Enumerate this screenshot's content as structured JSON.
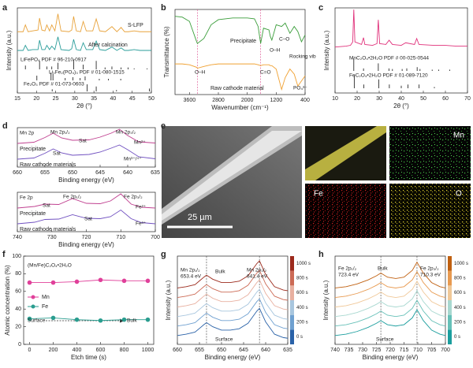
{
  "panel_labels": [
    "a",
    "b",
    "c",
    "d",
    "e",
    "f",
    "g",
    "h"
  ],
  "image_panel": {
    "scale_bar": "25 µm",
    "maps": [
      "Mn",
      "Fe",
      "O"
    ]
  },
  "chart_data": [
    {
      "type": "line",
      "xlabel": "2θ (°)",
      "ylabel": "Intensity (a.u.)",
      "xlim": [
        15,
        50
      ],
      "ylim": [
        0,
        10
      ],
      "xticks": [
        15,
        20,
        25,
        30,
        35,
        40,
        45,
        50
      ],
      "x": [
        15,
        16.5,
        17.1,
        17.8,
        19,
        20.4,
        20.8,
        21.4,
        22.2,
        22.7,
        23.4,
        24.0,
        24.8,
        25.6,
        26.4,
        28.5,
        29.2,
        29.7,
        30.4,
        31.5,
        32.2,
        33,
        34.7,
        35.6,
        36.5,
        38,
        39.7,
        41,
        42.1,
        43,
        44,
        45.5,
        47,
        49,
        50
      ],
      "series": [
        {
          "name": "S-LFP",
          "color": "#e8a23a",
          "values": [
            7.2,
            7.2,
            8.0,
            7.2,
            7.3,
            7.4,
            8.8,
            7.4,
            7.3,
            8.0,
            7.3,
            8.0,
            7.3,
            9.3,
            7.3,
            7.2,
            7.4,
            9.0,
            7.3,
            7.2,
            8.4,
            7.3,
            7.3,
            8.7,
            7.3,
            7.2,
            7.8,
            7.2,
            7.7,
            7.2,
            7.2,
            7.3,
            7.2,
            7.2,
            7.2
          ]
        },
        {
          "name": "After calcination",
          "color": "#2a9d9a",
          "values": [
            5.0,
            5.0,
            5.6,
            5.0,
            5.1,
            5.1,
            6.2,
            5.1,
            5.1,
            5.6,
            5.1,
            5.5,
            5.1,
            6.6,
            5.1,
            5.0,
            5.2,
            6.3,
            5.1,
            5.0,
            5.9,
            5.1,
            5.1,
            6.1,
            5.1,
            5.0,
            5.4,
            5.0,
            5.3,
            5.0,
            5.0,
            5.1,
            5.0,
            5.0,
            5.0
          ]
        }
      ],
      "sticks": [
        {
          "name": "LiFePO₄ PDF # 96-210-0917",
          "x": [
            17.1,
            20.8,
            22.7,
            24.0,
            25.6,
            29.7,
            32.2,
            35.6,
            37.9,
            39.7,
            42.1,
            43.9,
            45.5,
            48.9
          ],
          "heights": [
            0.4,
            0.9,
            0.3,
            0.3,
            0.7,
            1,
            0.5,
            0.9,
            0.2,
            0.3,
            0.2,
            0.2,
            0.1,
            0.1
          ]
        },
        {
          "name": "Li₃Fe₂(PO₄)₃ PDF # 01-080-1515",
          "x": [
            20.1,
            23.8,
            24.3,
            27.5,
            29.5,
            31.4,
            32.7,
            36.4,
            38.8,
            42
          ],
          "heights": [
            0.6,
            1,
            0.8,
            0.3,
            0.4,
            0.3,
            0.5,
            0.2,
            0.2,
            0.2
          ]
        },
        {
          "name": "Fe₂O₃ PDF # 01-073-0603",
          "x": [
            24.1,
            33.2,
            35.6,
            40.9,
            49.5
          ],
          "heights": [
            0.3,
            1,
            0.7,
            0.2,
            0.4
          ]
        }
      ]
    },
    {
      "type": "line",
      "xlabel": "Wavenumber (cm⁻¹)",
      "ylabel": "Transmittance (%)",
      "xlim": [
        4000,
        400
      ],
      "ylim": [
        0,
        10
      ],
      "xticks": [
        3600,
        2800,
        2000,
        1200,
        400
      ],
      "x": [
        4000,
        3800,
        3600,
        3400,
        3380,
        3200,
        3000,
        2800,
        2400,
        2000,
        1800,
        1700,
        1630,
        1550,
        1400,
        1360,
        1320,
        1200,
        1050,
        950,
        820,
        700,
        600,
        500,
        400
      ],
      "vlines": [
        3380,
        1630
      ],
      "series": [
        {
          "name": "Precipitate",
          "color": "#3a9d3a",
          "values": [
            9.2,
            9.1,
            8.6,
            6.2,
            6.0,
            6.6,
            8.2,
            8.8,
            9.0,
            9.0,
            8.9,
            8.0,
            6.0,
            7.8,
            7.6,
            6.8,
            6.4,
            8.2,
            8.0,
            8.4,
            7.2,
            8.0,
            7.4,
            6.2,
            7.0
          ]
        },
        {
          "name": "Raw cathode material",
          "color": "#f0a030",
          "values": [
            3.6,
            3.6,
            3.5,
            3.2,
            3.1,
            3.3,
            3.5,
            3.6,
            3.6,
            3.6,
            3.6,
            3.5,
            3.4,
            3.5,
            3.5,
            3.4,
            3.4,
            3.0,
            0.6,
            2.0,
            3.0,
            2.4,
            1.0,
            1.6,
            2.2
          ]
        }
      ],
      "annotations": [
        "O–H",
        "C=O",
        "C–O",
        "O–H",
        "Rocking vib",
        "PO₄³⁻"
      ]
    },
    {
      "type": "line",
      "xlabel": "2θ (°)",
      "ylabel": "Intensity (a.u.)",
      "xlim": [
        10,
        70
      ],
      "ylim": [
        0,
        10
      ],
      "xticks": [
        10,
        20,
        30,
        40,
        50,
        60,
        70
      ],
      "x": [
        10,
        15,
        17,
        18,
        18.5,
        19,
        22,
        22.9,
        23.5,
        27,
        29,
        29.6,
        30.2,
        33,
        34.5,
        36,
        40,
        42,
        46,
        47,
        48,
        55,
        60,
        65,
        70
      ],
      "series": [
        {
          "color": "#e0307a",
          "values": [
            5.4,
            5.5,
            5.6,
            6.0,
            9.8,
            6.0,
            5.7,
            6.5,
            5.7,
            5.6,
            5.8,
            8.6,
            5.8,
            5.7,
            6.2,
            5.7,
            5.6,
            5.9,
            5.7,
            6.4,
            5.7,
            5.6,
            5.6,
            5.5,
            5.5
          ]
        }
      ],
      "sticks": [
        {
          "name": "MnC₂O₄•2H₂O  PDF # 00-025-0544",
          "x": [
            18.5,
            22.9,
            29.6,
            34.4,
            36,
            40.4,
            42.5,
            47.2,
            48.5,
            54,
            57,
            62
          ],
          "heights": [
            1,
            0.2,
            0.6,
            0.2,
            0.15,
            0.15,
            0.2,
            0.3,
            0.15,
            0.1,
            0.1,
            0.1
          ]
        },
        {
          "name": "FeC₂O₄•2H₂O  PDF # 01-089-7120",
          "x": [
            18.7,
            23,
            29.8,
            34.6,
            40,
            43,
            48,
            55
          ],
          "heights": [
            1,
            0.3,
            0.7,
            0.3,
            0.2,
            0.3,
            0.3,
            0.1
          ]
        }
      ]
    },
    {
      "type": "line",
      "xlabel": "Binding energy (eV)",
      "xlim": [
        660,
        635
      ],
      "ylim": [
        0,
        10
      ],
      "xticks": [
        660,
        655,
        650,
        645,
        640,
        635
      ],
      "x": [
        660,
        657,
        655,
        653.5,
        652,
        650,
        647,
        645,
        643,
        641.5,
        640,
        638,
        635
      ],
      "series": [
        {
          "name": "Precipitate",
          "color": "#c04090",
          "values": [
            6.0,
            6.3,
            7.5,
            8.6,
            7.4,
            6.8,
            6.9,
            7.6,
            8.6,
            9.6,
            8.0,
            6.4,
            6.1
          ]
        },
        {
          "name": "Raw cathode materials",
          "color": "#7050c0",
          "values": [
            2.0,
            2.3,
            3.5,
            4.6,
            3.6,
            3.0,
            3.2,
            3.8,
            4.8,
            5.6,
            4.4,
            2.6,
            2.1
          ]
        }
      ],
      "annotations": [
        "Mn 2p",
        "Mn 2p₁/₂",
        "Sat",
        "Mn 2p₃/₂",
        "Mn²⁺",
        "Sat",
        "Mn³⁺/⁴⁺"
      ]
    },
    {
      "type": "line",
      "xlabel": "Binding energy (eV)",
      "xlim": [
        740,
        700
      ],
      "ylim": [
        0,
        10
      ],
      "xticks": [
        740,
        730,
        720,
        710,
        700
      ],
      "x": [
        740,
        735,
        732,
        728,
        724,
        720,
        716,
        713,
        710,
        707,
        704,
        700
      ],
      "series": [
        {
          "name": "Precipitate",
          "color": "#c04090",
          "values": [
            6.0,
            6.4,
            7.0,
            6.9,
            8.4,
            7.2,
            7.1,
            7.8,
            9.6,
            7.0,
            6.2,
            6.0
          ]
        },
        {
          "name": "Raw cathode materials",
          "color": "#7050c0",
          "values": [
            2.0,
            2.4,
            3.1,
            3.2,
            4.3,
            3.4,
            3.3,
            3.8,
            5.5,
            3.3,
            2.3,
            2.0
          ]
        }
      ],
      "annotations": [
        "Fe 2p",
        "Sat",
        "Fe 2p₁/₂",
        "Fe 2p₃/₂",
        "Fe²⁺",
        "Sat",
        "Fe³⁺"
      ]
    },
    {
      "type": "line",
      "markers": true,
      "xlabel": "Etch time (s)",
      "ylabel": "Atomic concentration (%)",
      "xlim": [
        -50,
        1050
      ],
      "ylim": [
        0,
        100
      ],
      "xticks": [
        0,
        200,
        400,
        600,
        800,
        1000
      ],
      "yticks": [
        0,
        20,
        40,
        60,
        80,
        100
      ],
      "x": [
        0,
        200,
        400,
        600,
        800,
        1000
      ],
      "series": [
        {
          "name": "Mn",
          "color": "#e0409a",
          "values": [
            70,
            70,
            71,
            73,
            72,
            72
          ]
        },
        {
          "name": "Fe",
          "color": "#2a9d8f",
          "values": [
            29,
            30,
            28,
            27,
            28,
            28
          ]
        }
      ],
      "annotations": [
        "(Mn/Fe)C₂O₄•2H₂O",
        "Surface",
        "Bulk"
      ]
    },
    {
      "type": "line",
      "xlabel": "Binding energy (eV)",
      "ylabel": "Intensity (a.u.)",
      "xlim": [
        660,
        635
      ],
      "ylim": [
        0,
        13
      ],
      "xticks": [
        660,
        655,
        650,
        645,
        640,
        635
      ],
      "x": [
        660,
        658,
        656,
        654,
        653.4,
        652,
        650,
        648,
        646,
        644,
        642,
        641.4,
        640,
        638,
        636,
        635
      ],
      "vlines": [
        653.4,
        641.4
      ],
      "series": [
        {
          "name": "0 s",
          "color": "#2a62a8",
          "values": [
            1.3,
            1.5,
            1.8,
            2.9,
            3.2,
            2.6,
            2.1,
            2.1,
            2.3,
            3.1,
            4.9,
            5.3,
            3.3,
            1.5,
            1.0,
            0.9
          ]
        },
        {
          "name": "200 s",
          "color": "#6fa0d0",
          "values": [
            2.7,
            2.9,
            3.2,
            4.3,
            4.6,
            4.0,
            3.5,
            3.5,
            3.7,
            4.5,
            6.3,
            6.7,
            4.7,
            2.9,
            2.4,
            2.3
          ]
        },
        {
          "name": "400 s",
          "color": "#a8c6de",
          "values": [
            4.1,
            4.3,
            4.6,
            5.7,
            6.0,
            5.4,
            4.9,
            4.9,
            5.1,
            5.9,
            7.7,
            8.1,
            6.1,
            4.3,
            3.8,
            3.7
          ]
        },
        {
          "name": "600 s",
          "color": "#e8b0a0",
          "values": [
            5.5,
            5.7,
            6.0,
            7.1,
            7.4,
            6.8,
            6.3,
            6.3,
            6.5,
            7.3,
            9.1,
            9.5,
            7.5,
            5.7,
            5.2,
            5.1
          ]
        },
        {
          "name": "800 s",
          "color": "#cc6a55",
          "values": [
            6.9,
            7.1,
            7.4,
            8.5,
            8.8,
            8.2,
            7.7,
            7.7,
            7.9,
            8.7,
            10.5,
            10.9,
            8.9,
            7.1,
            6.6,
            6.5
          ]
        },
        {
          "name": "1000 s",
          "color": "#9c2a1c",
          "values": [
            8.3,
            8.5,
            8.8,
            9.9,
            10.2,
            9.6,
            9.1,
            9.1,
            9.3,
            10.1,
            11.9,
            12.3,
            10.3,
            8.5,
            8.0,
            7.9
          ]
        }
      ],
      "annotations": [
        "Mn 2p₁/₂",
        "653.4 eV",
        "Bulk",
        "Mn 2p₃/₂",
        "641.4 eV",
        "Surface"
      ]
    },
    {
      "type": "line",
      "xlabel": "Binding energy (eV)",
      "ylabel": "Intensity (a.u.)",
      "xlim": [
        740,
        700
      ],
      "ylim": [
        0,
        13
      ],
      "xticks": [
        740,
        735,
        730,
        725,
        720,
        715,
        710,
        705,
        700
      ],
      "x": [
        740,
        736,
        732,
        728,
        725,
        723.4,
        721,
        718,
        715,
        712,
        710.3,
        708,
        705,
        702,
        700
      ],
      "vlines": [
        723.4,
        710.3
      ],
      "series": [
        {
          "name": "0 s",
          "color": "#1b9e9e",
          "values": [
            1.3,
            1.5,
            1.9,
            2.5,
            3.1,
            3.5,
            2.9,
            2.7,
            2.9,
            3.9,
            5.1,
            3.5,
            2.1,
            1.5,
            1.3
          ]
        },
        {
          "name": "200 s",
          "color": "#66c0b8",
          "values": [
            2.7,
            2.9,
            3.3,
            3.9,
            4.5,
            4.9,
            4.3,
            4.1,
            4.3,
            5.3,
            6.5,
            4.9,
            3.5,
            2.9,
            2.7
          ]
        },
        {
          "name": "400 s",
          "color": "#a8d8d0",
          "values": [
            4.1,
            4.3,
            4.7,
            5.3,
            5.9,
            6.3,
            5.7,
            5.5,
            5.7,
            6.7,
            7.9,
            6.3,
            4.9,
            4.3,
            4.1
          ]
        },
        {
          "name": "600 s",
          "color": "#f0c898",
          "values": [
            5.5,
            5.7,
            6.1,
            6.7,
            7.3,
            7.7,
            7.1,
            6.9,
            7.1,
            8.1,
            9.3,
            7.7,
            6.3,
            5.7,
            5.5
          ]
        },
        {
          "name": "800 s",
          "color": "#e89a50",
          "values": [
            6.9,
            7.1,
            7.5,
            8.1,
            8.7,
            9.1,
            8.5,
            8.3,
            8.5,
            9.5,
            10.7,
            9.1,
            7.7,
            7.1,
            6.9
          ]
        },
        {
          "name": "1000 s",
          "color": "#c06010",
          "values": [
            8.3,
            8.5,
            8.9,
            9.5,
            10.1,
            10.5,
            9.9,
            9.7,
            9.9,
            10.9,
            12.1,
            10.5,
            9.1,
            8.5,
            8.3
          ]
        }
      ],
      "annotations": [
        "Fe 2p₁/₂",
        "723.4 eV",
        "Bulk",
        "Fe 2p₃/₂",
        "710.3 eV",
        "Surface"
      ]
    }
  ]
}
